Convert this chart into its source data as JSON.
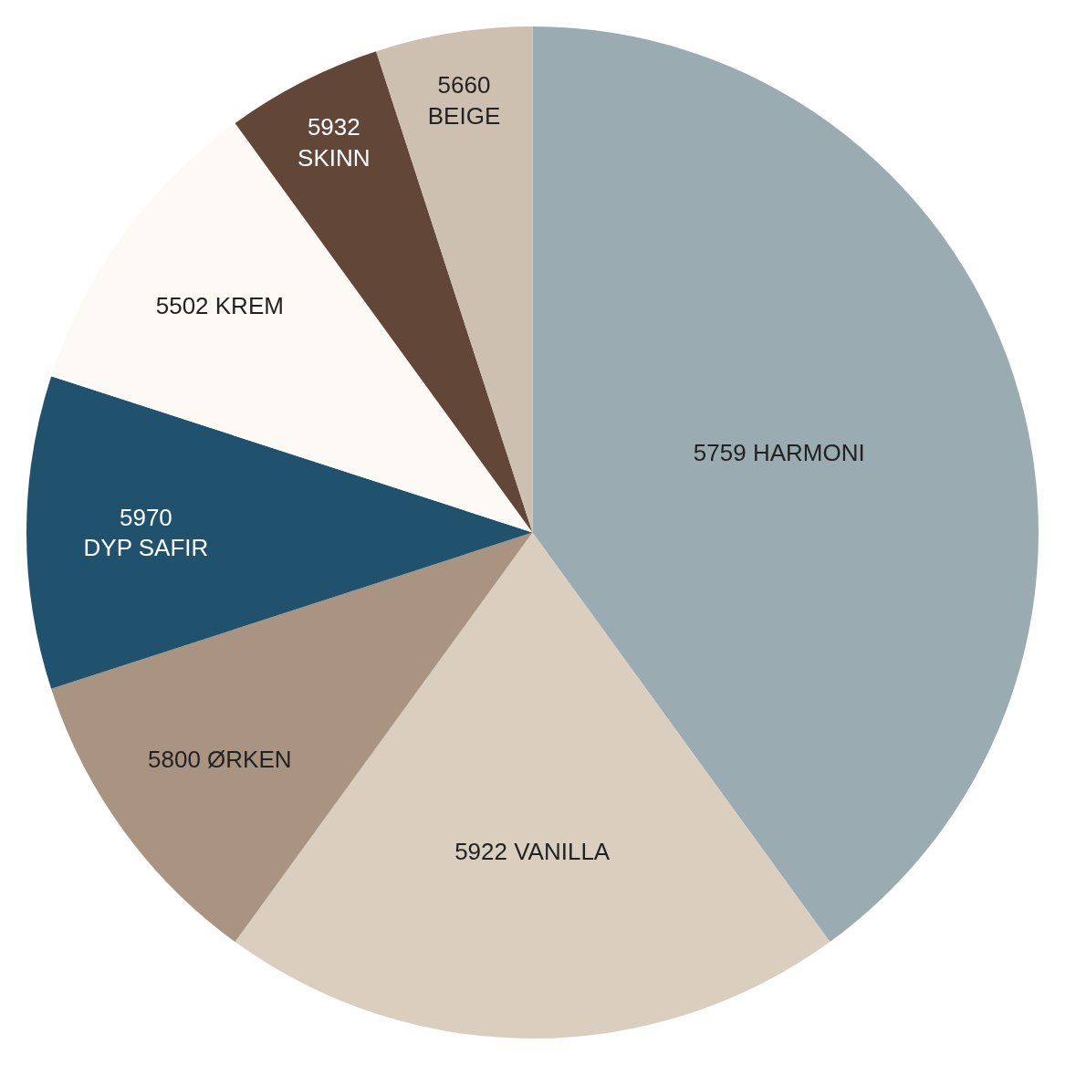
{
  "chart_data": {
    "type": "pie",
    "categories": [
      "5759 HARMONI",
      "5922 VANILLA",
      "5800 ØRKEN",
      "5970\nDYP SAFIR",
      "5502 KREM",
      "5932\nSKINN",
      "5660\nBEIGE"
    ],
    "values": [
      40,
      20,
      10,
      10,
      10,
      5,
      5
    ],
    "colors": [
      "#9aabb2",
      "#dacebe",
      "#a99482",
      "#20526d",
      "#fdf9f4",
      "#624638",
      "#cec0b1"
    ],
    "legend": false
  }
}
